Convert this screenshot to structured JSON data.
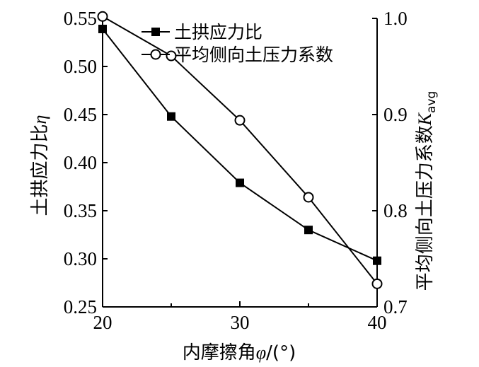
{
  "chart_data": {
    "type": "line",
    "x": [
      20,
      25,
      30,
      35,
      40
    ],
    "xlabel": "内摩擦角φ/(°)",
    "xlabel_parts": {
      "text": "内摩擦角",
      "symbol": "φ",
      "unit": "/(°)"
    },
    "xlim": [
      20,
      40
    ],
    "xticks": [
      "20",
      "30",
      "40"
    ],
    "ylabel_left": "土拱应力比η",
    "ylabel_left_parts": {
      "text": "土拱应力比",
      "symbol": "η"
    },
    "ylim_left": [
      0.25,
      0.55
    ],
    "yticks_left": [
      "0.25",
      "0.30",
      "0.35",
      "0.40",
      "0.45",
      "0.50",
      "0.55"
    ],
    "ylabel_right": "平均侧向土压力系数K_avg",
    "ylabel_right_parts": {
      "text": "平均侧向土压力系数",
      "symbol": "K",
      "subscript": "avg"
    },
    "ylim_right": [
      0.7,
      1.0
    ],
    "yticks_right": [
      "0.7",
      "0.8",
      "0.9",
      "1.0"
    ],
    "grid": false,
    "legend_position": "top-center",
    "series": [
      {
        "name": "土拱应力比",
        "axis": "left",
        "marker": "filled-square",
        "values": [
          0.539,
          0.448,
          0.379,
          0.33,
          0.298
        ]
      },
      {
        "name": "平均侧向土压力系数",
        "axis": "right",
        "marker": "open-circle",
        "values": [
          1.002,
          0.961,
          0.894,
          0.814,
          0.724
        ]
      }
    ]
  }
}
